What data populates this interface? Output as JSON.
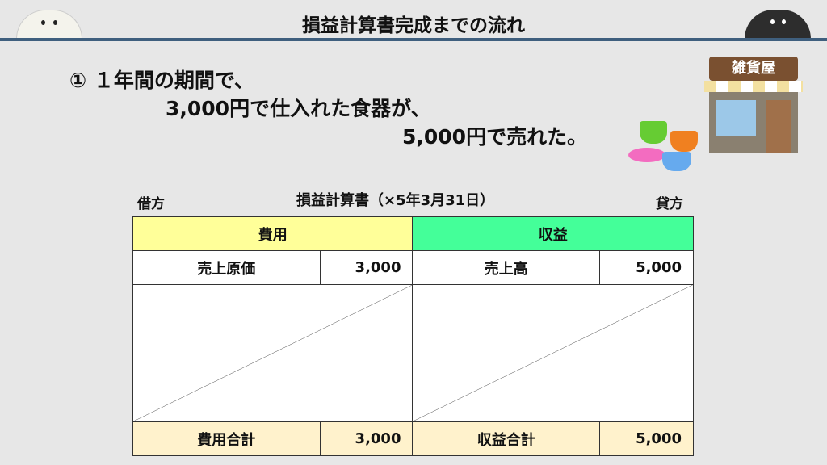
{
  "header": {
    "title": "損益計算書完成までの流れ"
  },
  "intro": {
    "line1": "①  １年間の期間で、",
    "line2": "3,000円で仕入れた食器が、",
    "line3": "5,000円で売れた。"
  },
  "shop_sign": "雑貨屋",
  "statement": {
    "debit_label": "借方",
    "title": "損益計算書（×5年3月31日）",
    "credit_label": "貸方",
    "expense_header": "費用",
    "revenue_header": "収益",
    "expense_item": "売上原価",
    "expense_amount": "3,000",
    "revenue_item": "売上高",
    "revenue_amount": "5,000",
    "expense_total_label": "費用合計",
    "expense_total": "3,000",
    "revenue_total_label": "収益合計",
    "revenue_total": "5,000"
  },
  "colors": {
    "expense": "#ffff99",
    "revenue": "#44ff99",
    "total": "#fff2cc",
    "rule": "#3f5f7e"
  }
}
